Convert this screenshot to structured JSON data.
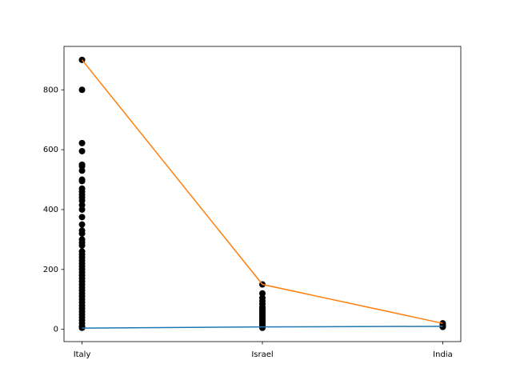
{
  "chart_data": {
    "type": "scatter",
    "categories": [
      "Italy",
      "Israel",
      "India"
    ],
    "xlim": [
      -0.1,
      2.1
    ],
    "ylim": [
      -41,
      945
    ],
    "yticks": [
      0,
      200,
      400,
      600,
      800
    ],
    "scatter": {
      "color": "#000000",
      "values": [
        [
          900,
          800,
          622,
          595,
          550,
          545,
          530,
          500,
          495,
          470,
          460,
          450,
          440,
          430,
          415,
          400,
          375,
          350,
          330,
          320,
          300,
          290,
          280,
          260,
          250,
          240,
          230,
          220,
          210,
          200,
          190,
          180,
          170,
          160,
          150,
          140,
          130,
          120,
          110,
          100,
          90,
          80,
          70,
          60,
          50,
          40,
          30,
          20,
          10,
          5
        ],
        [
          150,
          120,
          105,
          95,
          85,
          75,
          70,
          65,
          60,
          55,
          50,
          45,
          40,
          35,
          30,
          25,
          20,
          15,
          10,
          5
        ],
        [
          20,
          15,
          10,
          8
        ]
      ]
    },
    "lines": [
      {
        "color": "#1f77b4",
        "values": [
          4,
          8,
          10
        ]
      },
      {
        "color": "#ff7f0e",
        "values": [
          900,
          150,
          20
        ]
      }
    ]
  }
}
